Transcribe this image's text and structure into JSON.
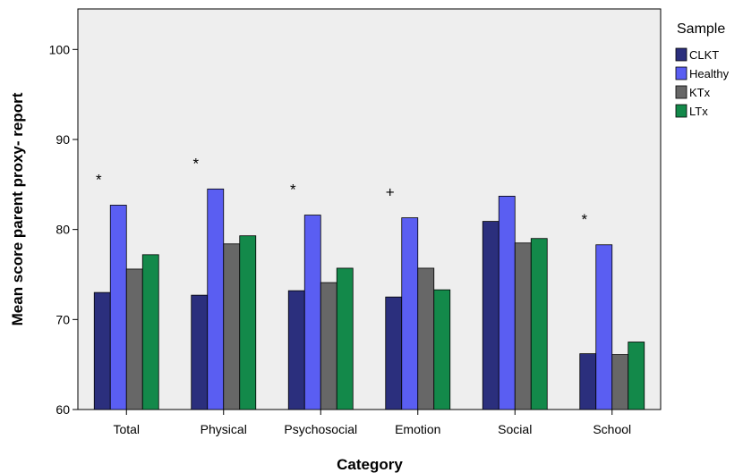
{
  "chart_data": {
    "type": "bar",
    "xlabel": "Category",
    "ylabel": "Mean score parent proxy- report",
    "ylim": [
      60,
      104.5
    ],
    "yticks": [
      60,
      70,
      80,
      90,
      100
    ],
    "categories": [
      "Total",
      "Physical",
      "Psychosocial",
      "Emotion",
      "Social",
      "School"
    ],
    "series": [
      {
        "name": "CLKT",
        "color": "#2b2f7d",
        "values": [
          73.0,
          72.7,
          73.2,
          72.5,
          80.9,
          66.2
        ]
      },
      {
        "name": "Healthy",
        "color": "#5a5ef2",
        "values": [
          82.7,
          84.5,
          81.6,
          81.3,
          83.7,
          78.3
        ]
      },
      {
        "name": "KTx",
        "color": "#676767",
        "values": [
          75.6,
          78.4,
          74.1,
          75.7,
          78.5,
          66.1
        ]
      },
      {
        "name": "LTx",
        "color": "#13894a",
        "values": [
          77.2,
          79.3,
          75.7,
          73.3,
          79.0,
          67.5
        ]
      }
    ],
    "annotations": [
      "*",
      "*",
      "*",
      "+",
      "",
      "*"
    ],
    "legend": {
      "title": "Sample",
      "placement": "right"
    },
    "grid": false,
    "background": "#eeeeee"
  }
}
